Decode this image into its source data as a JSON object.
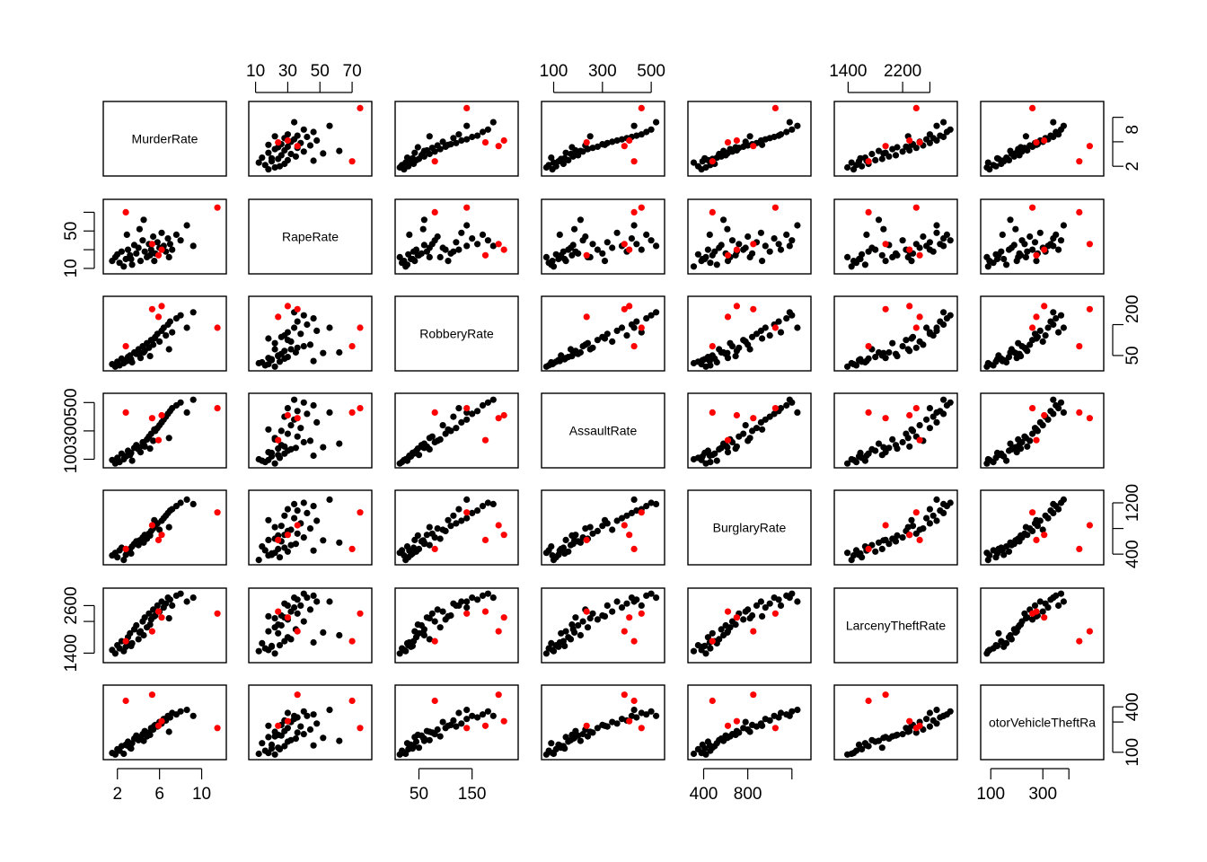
{
  "chart_data": {
    "type": "scatter",
    "chart_type_detail": "scatterplot matrix",
    "variables": [
      "MurderRate",
      "RapeRate",
      "RobberyRate",
      "AssaultRate",
      "BurglaryRate",
      "LarcenyTheftRate",
      "MotorVehicleTheftRate"
    ],
    "diagonal_labels": [
      "MurderRate",
      "RapeRate",
      "RobberyRate",
      "AssaultRate",
      "BurglaryRate",
      "LarcenyTheftRate",
      "otorVehicleTheftRa"
    ],
    "ranges": [
      [
        1,
        12
      ],
      [
        8,
        80
      ],
      [
        12,
        230
      ],
      [
        65,
        540
      ],
      [
        290,
        1340
      ],
      [
        1250,
        2950
      ],
      [
        75,
        520
      ]
    ],
    "ticks": [
      [
        2,
        6,
        10
      ],
      [
        10,
        30,
        50,
        70
      ],
      [
        50,
        150
      ],
      [
        100,
        300,
        500
      ],
      [
        400,
        800,
        1200
      ],
      [
        1400,
        2200,
        2600
      ],
      [
        100,
        300,
        400
      ]
    ],
    "tick_label_sets": {
      "MurderRate": {
        "bottom": [
          2,
          6,
          10
        ],
        "right": [
          2,
          8
        ]
      },
      "RapeRate": {
        "top": [
          10,
          30,
          50,
          70
        ],
        "left": [
          10,
          50
        ]
      },
      "RobberyRate": {
        "bottom": [
          50,
          150
        ],
        "right": [
          50,
          200
        ]
      },
      "AssaultRate": {
        "top": [
          100,
          300,
          500
        ],
        "left": [
          100,
          300,
          500
        ]
      },
      "BurglaryRate": {
        "bottom": [
          400,
          800
        ],
        "right": [
          400,
          1200
        ]
      },
      "LarcenyTheftRate": {
        "top": [
          1400,
          2200
        ],
        "left": [
          1400,
          2600
        ]
      },
      "MotorVehicleTheftRate": {
        "bottom": [
          100,
          300
        ],
        "right": [
          100,
          400
        ]
      }
    },
    "point_colors": {
      "regular": "#000000",
      "highlighted": "#ff0000"
    },
    "series": [
      {
        "color": "#000000",
        "rows": [
          [
            1.5,
            18,
            22,
            95,
            380,
            1480,
            95
          ],
          [
            1.8,
            22,
            14,
            70,
            420,
            1390,
            85
          ],
          [
            2.0,
            25,
            30,
            110,
            350,
            1600,
            120
          ],
          [
            2.2,
            16,
            18,
            80,
            460,
            1520,
            110
          ],
          [
            2.4,
            28,
            40,
            140,
            500,
            1700,
            140
          ],
          [
            2.6,
            12,
            25,
            100,
            310,
            1450,
            90
          ],
          [
            2.8,
            20,
            35,
            120,
            390,
            1560,
            150
          ],
          [
            3.0,
            30,
            45,
            160,
            440,
            1800,
            170
          ],
          [
            3.2,
            24,
            50,
            130,
            480,
            1900,
            130
          ],
          [
            3.4,
            14,
            28,
            90,
            520,
            1650,
            160
          ],
          [
            3.6,
            35,
            60,
            180,
            560,
            2000,
            190
          ],
          [
            3.8,
            26,
            55,
            200,
            600,
            2100,
            210
          ],
          [
            4.0,
            32,
            70,
            170,
            540,
            1750,
            180
          ],
          [
            4.2,
            18,
            42,
            150,
            620,
            1950,
            200
          ],
          [
            4.4,
            40,
            80,
            220,
            660,
            2200,
            220
          ],
          [
            4.6,
            28,
            65,
            190,
            700,
            2300,
            240
          ],
          [
            4.8,
            22,
            90,
            240,
            640,
            2050,
            205
          ],
          [
            5.0,
            36,
            75,
            260,
            720,
            2400,
            230
          ],
          [
            5.2,
            30,
            100,
            280,
            760,
            2250,
            260
          ],
          [
            5.4,
            44,
            85,
            230,
            800,
            2500,
            250
          ],
          [
            5.6,
            26,
            110,
            300,
            840,
            2350,
            280
          ],
          [
            5.8,
            38,
            120,
            320,
            880,
            2600,
            270
          ],
          [
            6.0,
            32,
            95,
            340,
            780,
            2450,
            300
          ],
          [
            6.2,
            48,
            130,
            360,
            920,
            2700,
            290
          ],
          [
            6.4,
            34,
            140,
            380,
            960,
            2550,
            320
          ],
          [
            6.6,
            28,
            115,
            400,
            1000,
            2650,
            310
          ],
          [
            6.8,
            42,
            150,
            420,
            1040,
            2800,
            340
          ],
          [
            7.0,
            36,
            160,
            440,
            1080,
            2750,
            330
          ],
          [
            7.2,
            30,
            125,
            460,
            1100,
            2600,
            360
          ],
          [
            7.6,
            46,
            170,
            480,
            1150,
            2850,
            350
          ],
          [
            8.0,
            40,
            180,
            500,
            1200,
            2900,
            370
          ],
          [
            8.6,
            56,
            140,
            430,
            1250,
            2700,
            380
          ],
          [
            9.2,
            34,
            190,
            520,
            1180,
            2800,
            340
          ],
          [
            4.5,
            62,
            60,
            210,
            580,
            1850,
            175
          ],
          [
            3.3,
            20,
            38,
            145,
            410,
            1580,
            125
          ],
          [
            5.1,
            24,
            48,
            175,
            690,
            2120,
            215
          ],
          [
            6.9,
            22,
            70,
            250,
            820,
            2280,
            235
          ],
          [
            2.9,
            46,
            32,
            125,
            455,
            1670,
            145
          ],
          [
            5.5,
            18,
            105,
            310,
            930,
            2330,
            275
          ],
          [
            4.1,
            52,
            58,
            185,
            615,
            1920,
            195
          ]
        ]
      },
      {
        "color": "#ff0000",
        "rows": [
          [
            2.8,
            70,
            80,
            430,
            480,
            1700,
            440
          ],
          [
            11.5,
            75,
            140,
            460,
            1050,
            2400,
            260
          ],
          [
            5.3,
            36,
            200,
            390,
            850,
            1950,
            480
          ],
          [
            5.9,
            24,
            175,
            235,
            620,
            2450,
            275
          ],
          [
            6.2,
            30,
            210,
            410,
            700,
            2300,
            305
          ]
        ]
      }
    ],
    "grid": false,
    "legend": "none"
  }
}
